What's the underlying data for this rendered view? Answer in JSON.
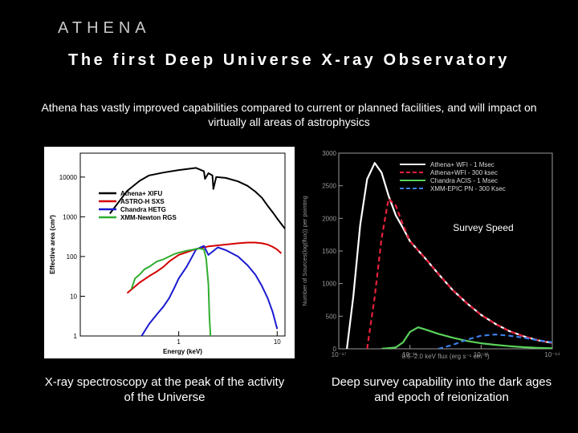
{
  "brand": "ATHENA",
  "title": "The first Deep Universe X-ray Observatory",
  "intro": "Athena has vastly improved capabilities compared to current or planned facilities, and will impact on virtually all areas of astrophysics",
  "captions": {
    "left": "X-ray spectroscopy at the peak of the activity of the Universe",
    "right": "Deep survey capability into the dark ages and epoch of reionization"
  },
  "colors": {
    "background": "#000000",
    "athena": "#000000",
    "astroh": "#d40000",
    "chandra": "#1a1ad0",
    "xmm": "#2fae2f",
    "survey_athena": "#ffffff",
    "survey_athena300": "#e8203c",
    "survey_chandra": "#5ad35a",
    "survey_xmm": "#3c7fe8"
  },
  "chart_data": [
    {
      "type": "line",
      "title": "",
      "xlabel": "Energy (keV)",
      "ylabel": "Effective area (cm²)",
      "xscale": "log",
      "yscale": "log",
      "xlim": [
        0.1,
        12
      ],
      "ylim": [
        1,
        40000
      ],
      "x_ticks": [
        "1",
        "10"
      ],
      "y_ticks": [
        "1",
        "10",
        "100",
        "1000",
        "10000"
      ],
      "series": [
        {
          "name": "Athena+ XIFU",
          "color": "#000000",
          "x": [
            0.2,
            0.25,
            0.3,
            0.4,
            0.5,
            0.7,
            1.0,
            1.5,
            1.8,
            1.85,
            2.0,
            2.2,
            2.25,
            2.4,
            3,
            4,
            5,
            6,
            7,
            8,
            9,
            10,
            12
          ],
          "y": [
            1200,
            2500,
            4500,
            8000,
            11000,
            13000,
            15000,
            17000,
            14000,
            9000,
            12500,
            11000,
            5000,
            10000,
            9500,
            7800,
            6000,
            4300,
            3000,
            1900,
            1300,
            900,
            500
          ]
        },
        {
          "name": "ASTRO-H SXS",
          "color": "#d40000",
          "x": [
            0.3,
            0.4,
            0.5,
            0.6,
            0.7,
            0.8,
            1.0,
            1.5,
            2.0,
            3,
            4,
            5,
            6,
            7,
            8,
            9,
            10,
            11
          ],
          "y": [
            12,
            22,
            32,
            42,
            55,
            75,
            110,
            155,
            180,
            200,
            215,
            225,
            225,
            215,
            200,
            175,
            150,
            120
          ]
        },
        {
          "name": "Chandra HETG",
          "color": "#1a1ad0",
          "x": [
            0.42,
            0.5,
            0.6,
            0.7,
            0.8,
            0.9,
            1.0,
            1.2,
            1.5,
            1.8,
            2.0,
            2.5,
            3,
            4,
            5,
            6,
            7,
            8,
            9,
            10
          ],
          "y": [
            1,
            2,
            3.5,
            5.5,
            9,
            16,
            28,
            55,
            150,
            185,
            110,
            170,
            145,
            100,
            60,
            35,
            18,
            9,
            4,
            1.5
          ]
        },
        {
          "name": "XMM-Newton RGS",
          "color": "#2fae2f",
          "x": [
            0.33,
            0.36,
            0.4,
            0.45,
            0.5,
            0.6,
            0.7,
            0.8,
            0.9,
            1.0,
            1.2,
            1.4,
            1.6,
            1.8,
            1.9,
            2.0,
            2.05,
            2.1
          ],
          "y": [
            15,
            28,
            35,
            48,
            55,
            75,
            85,
            100,
            115,
            125,
            140,
            150,
            160,
            150,
            90,
            20,
            3,
            1
          ]
        }
      ]
    },
    {
      "type": "line",
      "title": "Survey Speed",
      "xlabel": "0.5–2.0 keV flux (erg s⁻¹ cm⁻²)",
      "ylabel": "Number of Sources(log(flux)) per pointing",
      "xscale": "log",
      "xlim": [
        1e-17,
        1e-14
      ],
      "ylim": [
        0,
        3000
      ],
      "x_ticks": [
        "10⁻¹⁷",
        "10⁻¹⁶",
        "10⁻¹⁵",
        "10⁻¹⁴"
      ],
      "y_ticks": [
        "0",
        "500",
        "1000",
        "1500",
        "2000",
        "2500",
        "3000"
      ],
      "series": [
        {
          "name": "Athena+ WFI - 1 Msec",
          "color": "#ffffff",
          "style": "solid",
          "x": [
            1.3e-17,
            1.6e-17,
            2e-17,
            2.5e-17,
            3.2e-17,
            4e-17,
            5e-17,
            6.3e-17,
            8e-17,
            1e-16,
            1.6e-16,
            2.5e-16,
            4e-16,
            6.3e-16,
            1e-15,
            1.6e-15,
            2.5e-15,
            4e-15,
            6.3e-15,
            1e-14
          ],
          "y": [
            0,
            800,
            1900,
            2600,
            2850,
            2700,
            2350,
            2050,
            1850,
            1650,
            1400,
            1150,
            900,
            700,
            520,
            380,
            270,
            190,
            130,
            90
          ]
        },
        {
          "name": "Athena+WFI - 300 ksec",
          "color": "#e8203c",
          "style": "dashed",
          "x": [
            2.5e-17,
            3.2e-17,
            4e-17,
            5e-17,
            6.3e-17,
            8e-17,
            1e-16,
            1.6e-16,
            2.5e-16,
            4e-16,
            6.3e-16,
            1e-15,
            1.6e-15,
            2.5e-15,
            4e-15,
            6.3e-15,
            1e-14
          ],
          "y": [
            0,
            800,
            1700,
            2300,
            2200,
            1900,
            1650,
            1400,
            1150,
            900,
            700,
            520,
            380,
            270,
            190,
            130,
            90
          ]
        },
        {
          "name": "Chandra ACIS - 1 Msec",
          "color": "#5ad35a",
          "style": "solid",
          "x": [
            4e-17,
            6.3e-17,
            8e-17,
            1e-16,
            1.3e-16,
            1.6e-16,
            2.5e-16,
            4e-16,
            6.3e-16,
            1e-15,
            1.6e-15,
            2.5e-15,
            4e-15,
            6.3e-15,
            1e-14
          ],
          "y": [
            0,
            20,
            100,
            260,
            330,
            300,
            230,
            170,
            120,
            85,
            60,
            40,
            25,
            15,
            8
          ]
        },
        {
          "name": "XMM-EPIC PN - 300 Ksec",
          "color": "#3c7fe8",
          "style": "dashed",
          "x": [
            2.5e-16,
            4e-16,
            6.3e-16,
            1e-15,
            1.6e-15,
            2.5e-15,
            4e-15,
            6.3e-15,
            1e-14
          ],
          "y": [
            0,
            60,
            140,
            200,
            220,
            200,
            170,
            130,
            100
          ]
        }
      ]
    }
  ]
}
